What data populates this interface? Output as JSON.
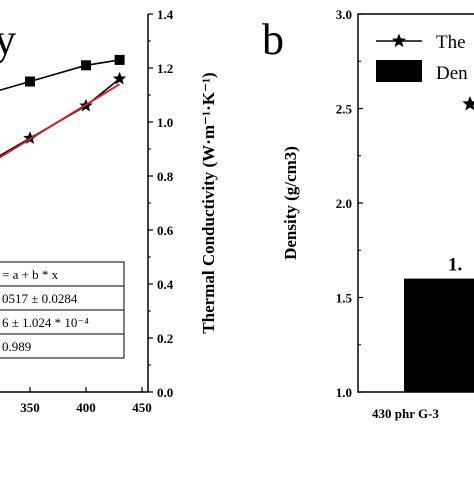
{
  "chart_data": [
    {
      "panel": "a",
      "type": "line",
      "panel_letter": "y",
      "xlabel": "",
      "ylabel_right": "Thermal Conductivity (W·m⁻¹·K⁻¹)",
      "x_ticks": [
        "350",
        "400",
        "450"
      ],
      "y_right_ticks": [
        "0.0",
        "0.2",
        "0.4",
        "0.6",
        "0.8",
        "1.0",
        "1.2",
        "1.4"
      ],
      "y_right_lim": [
        0.0,
        1.4
      ],
      "xlim_visible": [
        300,
        450
      ],
      "series": [
        {
          "marker": "square",
          "color": "#000000",
          "x": [
            300,
            350,
            400,
            430
          ],
          "y": [
            1.09,
            1.15,
            1.21,
            1.23
          ]
        },
        {
          "marker": "star",
          "color": "#000000",
          "x": [
            300,
            350,
            400,
            430
          ],
          "y": [
            0.82,
            0.94,
            1.06,
            1.16
          ]
        },
        {
          "marker": "none",
          "color": "#c0282d",
          "x": [
            300,
            430
          ],
          "y": [
            0.81,
            1.14
          ]
        }
      ],
      "fit_table": {
        "rows": [
          "= a + b * x",
          "0517 ± 0.0284",
          "6 ± 1.024 * 10⁻⁴",
          "0.989"
        ]
      }
    },
    {
      "panel": "b",
      "type": "bar",
      "panel_letter": "b",
      "ylabel": "Density (g/cm3)",
      "y_ticks": [
        "1.0",
        "1.5",
        "2.0",
        "2.5",
        "3.0"
      ],
      "ylim": [
        1.0,
        3.0
      ],
      "categories": [
        "430 phr G-3"
      ],
      "values": [
        1.6
      ],
      "bar_label": "1.",
      "legend": [
        {
          "marker": "star-line",
          "label": "The"
        },
        {
          "marker": "box",
          "label": "Den"
        }
      ],
      "color": "#000000"
    }
  ]
}
